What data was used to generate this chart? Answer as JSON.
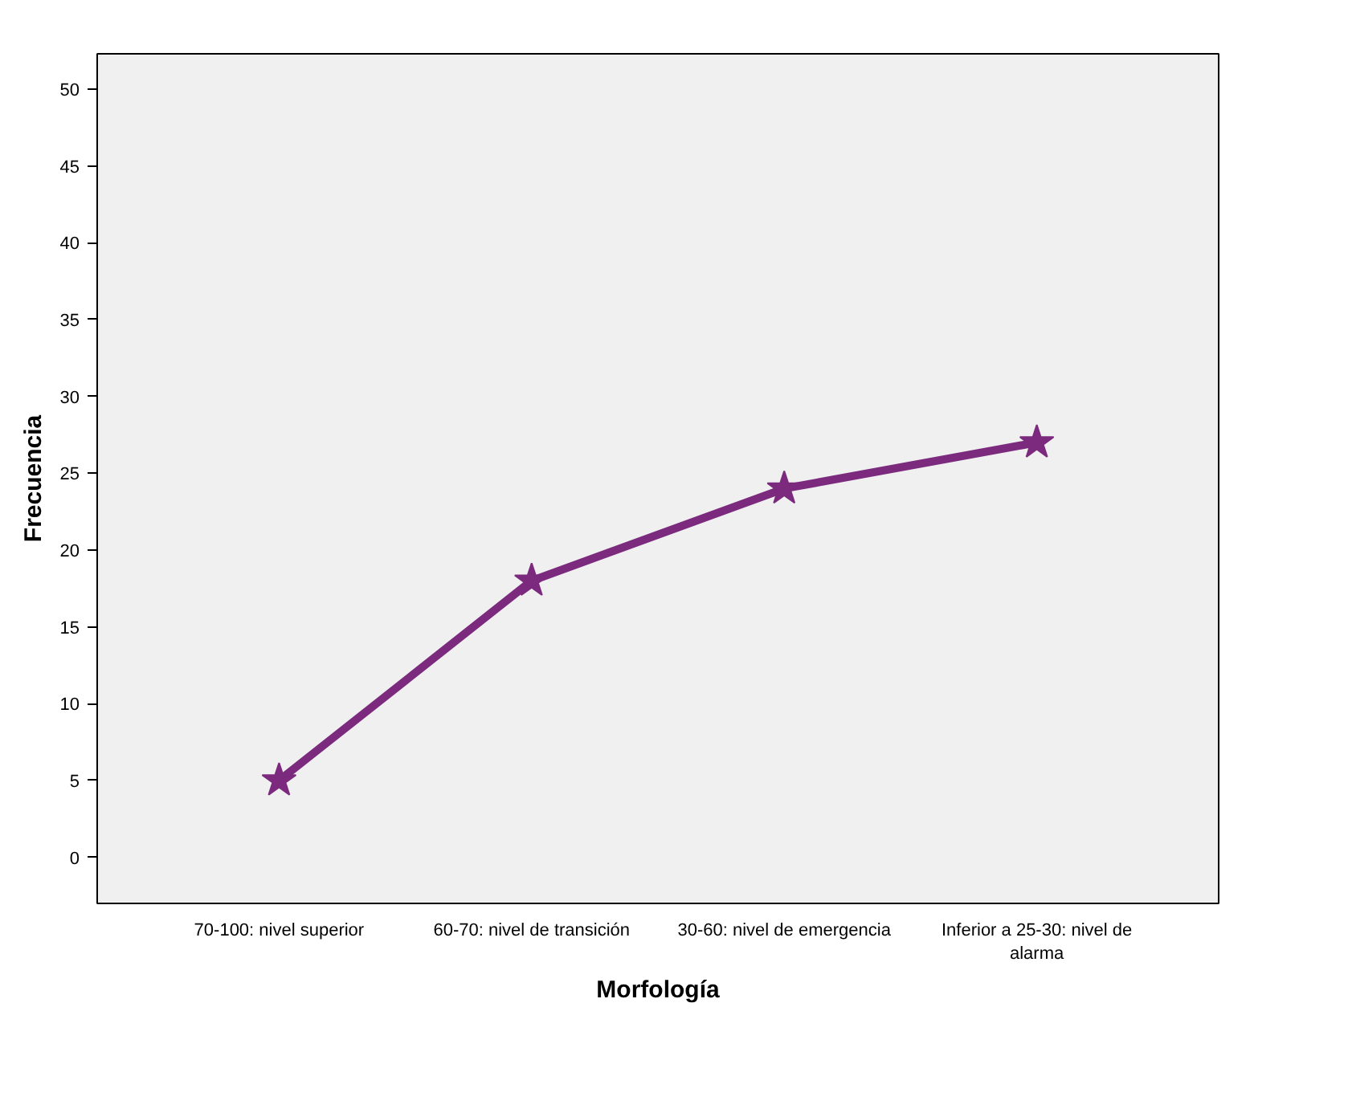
{
  "chart_data": {
    "type": "line",
    "xlabel": "Morfología",
    "ylabel": "Frecuencia",
    "categories": [
      "70-100: nivel superior",
      "60-70: nivel de transición",
      "30-60: nivel de emergencia",
      "Inferior a 25-30: nivel de alarma"
    ],
    "series": [
      {
        "color": "#7b2a7e",
        "values": [
          5,
          18,
          24,
          27
        ]
      }
    ],
    "ylim": [
      -3,
      52.3
    ],
    "yticks": [
      0,
      5,
      10,
      15,
      20,
      25,
      30,
      35,
      40,
      45,
      50
    ],
    "grid": false,
    "marker": "star",
    "line_style": "solid"
  }
}
